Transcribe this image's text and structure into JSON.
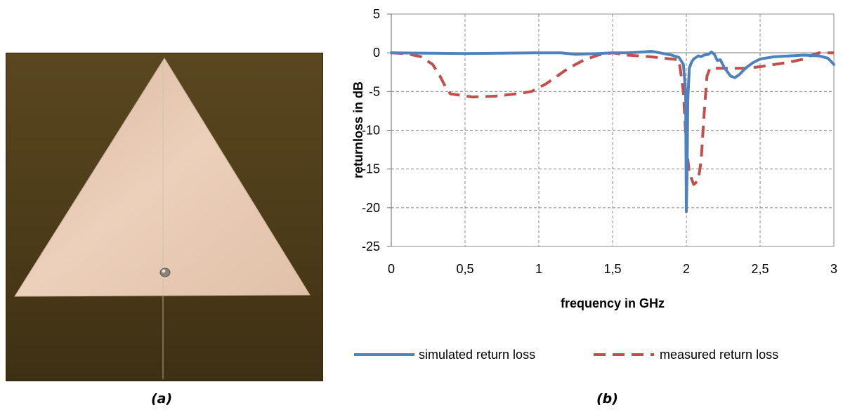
{
  "captions": {
    "a": "(a)",
    "b": "(b)"
  },
  "colors": {
    "board": "#4a3a1a",
    "patch": "#e6c4ac",
    "simulated": "#4f81bd",
    "measured": "#c0504d",
    "grid": "#8c8c8c"
  },
  "chart_data": {
    "type": "line",
    "title": "",
    "xlabel": "frequency in GHz",
    "ylabel": "returnloss in dB",
    "xlim": [
      0,
      3
    ],
    "ylim": [
      -25,
      5
    ],
    "xticks": [
      0,
      0.5,
      1,
      1.5,
      2,
      2.5,
      3
    ],
    "xtick_labels": [
      "0",
      "0,5",
      "1",
      "1,5",
      "2",
      "2,5",
      "3"
    ],
    "yticks": [
      -25,
      -20,
      -15,
      -10,
      -5,
      0,
      5
    ],
    "ytick_labels": [
      "-25",
      "-20",
      "-15",
      "-10",
      "-5",
      "0",
      "5"
    ],
    "grid": true,
    "legend_position": "bottom",
    "series": [
      {
        "name": "simulated return loss",
        "style": "solid",
        "x": [
          0,
          0.5,
          1,
          1.15,
          1.25,
          1.4,
          1.5,
          1.6,
          1.7,
          1.76,
          1.82,
          1.9,
          1.95,
          1.98,
          1.995,
          2.0,
          2.005,
          2.01,
          2.02,
          2.035,
          2.05,
          2.08,
          2.1,
          2.12,
          2.15,
          2.17,
          2.19,
          2.21,
          2.23,
          2.26,
          2.3,
          2.33,
          2.36,
          2.4,
          2.45,
          2.5,
          2.6,
          2.7,
          2.8,
          2.9,
          2.96,
          3.0
        ],
        "y": [
          0,
          -0.1,
          0,
          0,
          -0.2,
          -0.1,
          0,
          0,
          0.1,
          0.2,
          0,
          -0.3,
          -0.6,
          -1.5,
          -5,
          -20.5,
          -15,
          -6,
          -2,
          -1.2,
          -0.8,
          -0.4,
          -0.5,
          -0.3,
          -0.2,
          0.1,
          -0.2,
          -1,
          -0.9,
          -2,
          -3,
          -3.2,
          -2.8,
          -2,
          -1.3,
          -0.8,
          -0.5,
          -0.4,
          -0.3,
          -0.4,
          -0.7,
          -1.5
        ]
      },
      {
        "name": "measured return loss",
        "style": "dashed",
        "x": [
          0,
          0.1,
          0.2,
          0.28,
          0.33,
          0.37,
          0.4,
          0.55,
          0.7,
          0.85,
          0.95,
          1.05,
          1.2,
          1.3,
          1.4,
          1.5,
          1.6,
          1.75,
          1.85,
          1.95,
          1.98,
          2.0,
          2.02,
          2.05,
          2.08,
          2.1,
          2.12,
          2.14,
          2.16,
          2.2,
          2.3,
          2.4,
          2.5,
          2.6,
          2.7,
          2.8,
          2.85,
          2.9,
          3.0
        ],
        "y": [
          0,
          -0.1,
          -0.5,
          -1.5,
          -3,
          -4.5,
          -5.3,
          -5.7,
          -5.6,
          -5.3,
          -5,
          -4,
          -2,
          -1,
          -0.3,
          0,
          -0.3,
          -0.5,
          -0.7,
          -0.9,
          -5,
          -12,
          -15.5,
          -17,
          -16.5,
          -14,
          -8,
          -3,
          -2,
          -2,
          -2,
          -2,
          -1.8,
          -1.5,
          -1.2,
          -0.8,
          -0.3,
          0,
          0
        ]
      }
    ]
  }
}
